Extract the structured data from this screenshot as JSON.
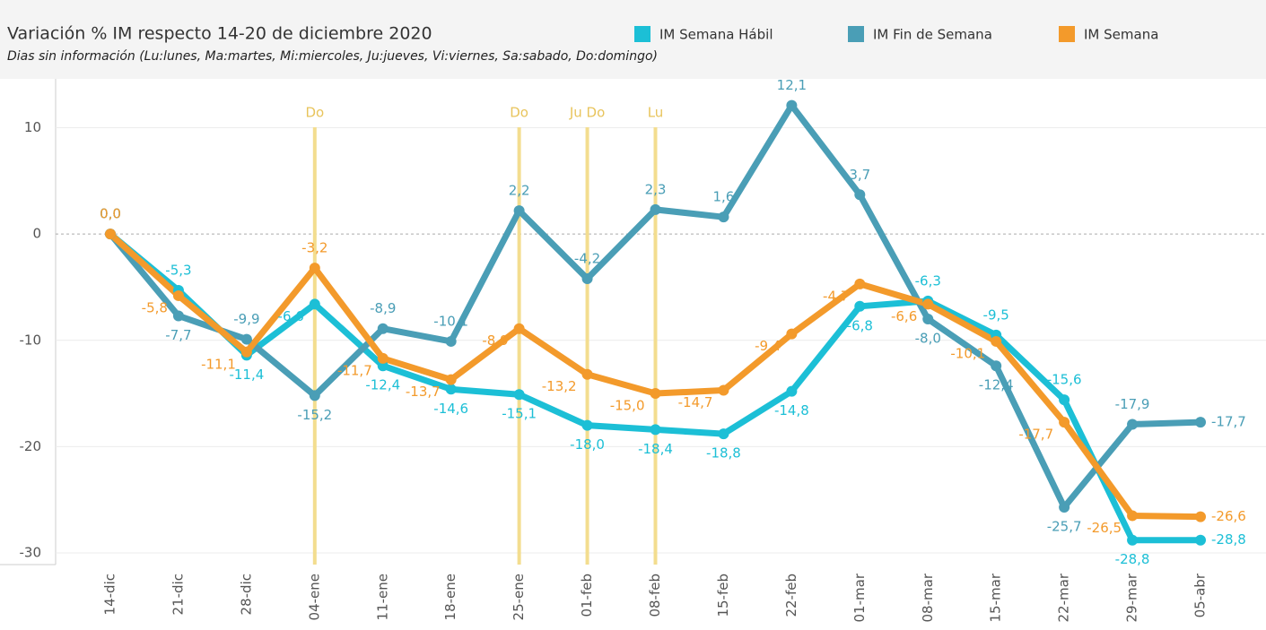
{
  "chart_data": {
    "type": "line",
    "title": "Variación % IM respecto 14-20 de diciembre 2020",
    "subtitle": "Dias sin información (Lu:lunes, Ma:martes, Mi:miercoles, Ju:jueves, Vi:viernes, Sa:sabado, Do:domingo)",
    "categories": [
      "14-dic",
      "21-dic",
      "28-dic",
      "04-ene",
      "11-ene",
      "18-ene",
      "25-ene",
      "01-feb",
      "08-feb",
      "15-feb",
      "22-feb",
      "01-mar",
      "08-mar",
      "15-mar",
      "22-mar",
      "29-mar",
      "05-abr"
    ],
    "series": [
      {
        "name": "IM Semana Hábil",
        "color": "#1cbfd6",
        "values": [
          0,
          -5.3,
          -11.4,
          -6.6,
          -12.4,
          -14.6,
          -15.1,
          -18.0,
          -18.4,
          -18.8,
          -14.8,
          -6.8,
          -6.3,
          -9.5,
          -15.6,
          -28.8,
          -28.8
        ],
        "value_labels": [
          "0,0",
          "-5,3",
          "-11,4",
          "-6,6",
          "-12,4",
          "-14,6",
          "-15,1",
          "-18,0",
          "-18,4",
          "-18,8",
          "-14,8",
          "-6,8",
          "-6,3",
          "-9,5",
          "-15,6",
          "-28,8",
          "-28,8"
        ]
      },
      {
        "name": "IM Fin de Semana",
        "color": "#4a9eb6",
        "values": [
          0,
          -7.7,
          -9.9,
          -15.2,
          -8.9,
          -10.1,
          2.2,
          -4.2,
          2.3,
          1.6,
          12.1,
          3.7,
          -8.0,
          -12.4,
          -25.7,
          -17.9,
          -17.7
        ],
        "value_labels": [
          "0,0",
          "-7,7",
          "-9,9",
          "-15,2",
          "-8,9",
          "-10,1",
          "2,2",
          "-4,2",
          "2,3",
          "1,6",
          "12,1",
          "3,7",
          "-8,0",
          "-12,4",
          "-25,7",
          "-17,9",
          "-17,7"
        ]
      },
      {
        "name": "IM Semana",
        "color": "#f39a2b",
        "values": [
          0,
          -5.8,
          -11.1,
          -3.2,
          -11.7,
          -13.7,
          -8.9,
          -13.2,
          -15.0,
          -14.7,
          -9.4,
          -4.7,
          -6.6,
          -10.1,
          -17.7,
          -26.5,
          -26.6
        ],
        "value_labels": [
          "0,0",
          "-5,8",
          "-11,1",
          "-3,2",
          "-11,7",
          "-13,7",
          "-8,9",
          "-13,2",
          "-15,0",
          "-14,7",
          "-9,4",
          "-4,7",
          "-6,6",
          "-10,1",
          "-17,7",
          "-26,5",
          "-26,6"
        ]
      }
    ],
    "annotations": [
      {
        "category": "04-ene",
        "label": "Do"
      },
      {
        "category": "25-ene",
        "label": "Do"
      },
      {
        "category": "01-feb",
        "label": "Ju Do"
      },
      {
        "category": "08-feb",
        "label": "Lu"
      }
    ],
    "ylim": [
      -31.1,
      14.6
    ],
    "yticks": [
      -30,
      -20,
      -10,
      0,
      10
    ],
    "grid": true
  }
}
